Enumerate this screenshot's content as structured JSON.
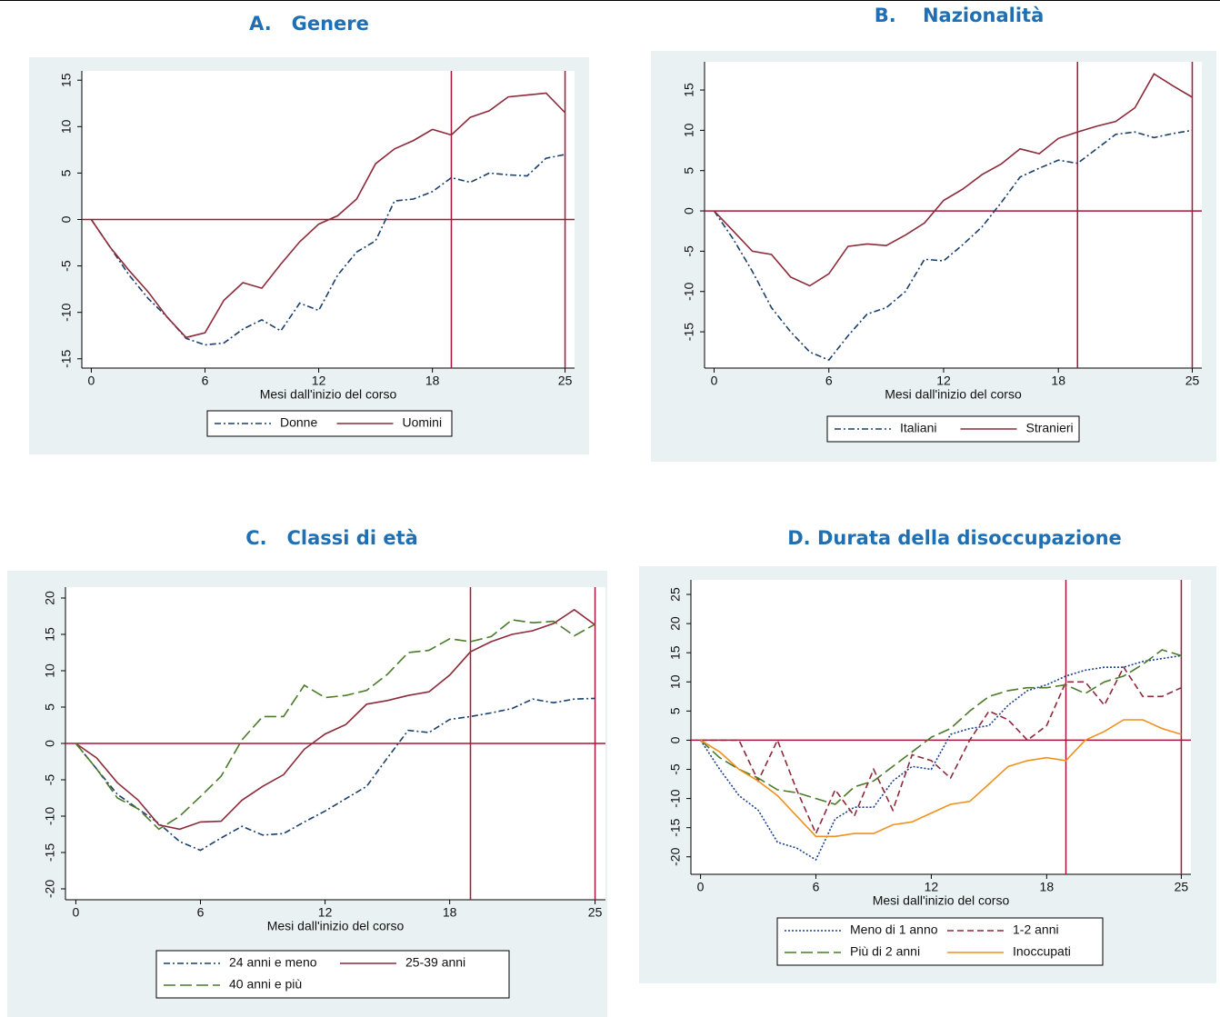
{
  "chart_data": [
    {
      "type": "line",
      "title": "A.   Genere",
      "xlabel": "Mesi dall'inizio del corso",
      "x": [
        0,
        1,
        2,
        3,
        4,
        5,
        6,
        7,
        8,
        9,
        10,
        11,
        12,
        13,
        14,
        15,
        16,
        17,
        18,
        19,
        20,
        21,
        22,
        23,
        24,
        25
      ],
      "xlim": [
        -0.5,
        25.5
      ],
      "xticks": [
        0,
        6,
        12,
        18,
        25
      ],
      "ylim": [
        -16,
        16
      ],
      "yticks": [
        -15,
        -10,
        -5,
        0,
        5,
        10,
        15
      ],
      "hline": 0,
      "vlines": [
        19,
        25
      ],
      "ref_color": "#a5173a",
      "series": [
        {
          "name": "Donne",
          "color": "#1b3f6b",
          "style": "dashdot",
          "values": [
            0,
            -3,
            -6,
            -8.5,
            -10.5,
            -12.8,
            -13.5,
            -13.3,
            -11.8,
            -10.8,
            -12,
            -9,
            -9.8,
            -6,
            -3.5,
            -2.3,
            2,
            2.2,
            3,
            4.5,
            4,
            5,
            4.8,
            4.7,
            6.6,
            7
          ]
        },
        {
          "name": "Uomini",
          "color": "#8c2a3a",
          "style": "solid",
          "values": [
            0,
            -3,
            -5.5,
            -7.8,
            -10.5,
            -12.7,
            -12.2,
            -8.7,
            -6.8,
            -7.4,
            -4.8,
            -2.4,
            -0.5,
            0.4,
            2.2,
            6,
            7.6,
            8.5,
            9.7,
            9.1,
            11,
            11.7,
            13.2,
            13.4,
            13.6,
            11.5
          ]
        }
      ]
    },
    {
      "type": "line",
      "title": "B.    Nazionalità",
      "xlabel": "Mesi dall'inizio del corso",
      "x": [
        0,
        1,
        2,
        3,
        4,
        5,
        6,
        7,
        8,
        9,
        10,
        11,
        12,
        13,
        14,
        15,
        16,
        17,
        18,
        19,
        20,
        21,
        22,
        23,
        24,
        25
      ],
      "xlim": [
        -0.5,
        25.5
      ],
      "xticks": [
        0,
        6,
        12,
        18,
        25
      ],
      "ylim": [
        -19.5,
        18.5
      ],
      "yticks": [
        -15,
        -10,
        -5,
        0,
        5,
        10,
        15
      ],
      "hline": 0,
      "vlines": [
        19,
        25
      ],
      "ref_color": "#a5173a",
      "series": [
        {
          "name": "Italiani",
          "color": "#1b3f6b",
          "style": "dashdot",
          "values": [
            0,
            -3.5,
            -7.5,
            -12,
            -15,
            -17.5,
            -18.5,
            -15.5,
            -12.8,
            -12,
            -10,
            -6,
            -6.2,
            -4.2,
            -2,
            1,
            4.2,
            5.3,
            6.3,
            5.9,
            7.7,
            9.5,
            9.8,
            9.1,
            9.6,
            10
          ]
        },
        {
          "name": "Stranieri",
          "color": "#8c2a3a",
          "style": "solid",
          "values": [
            0,
            -2.5,
            -5,
            -5.4,
            -8.2,
            -9.3,
            -7.8,
            -4.4,
            -4.1,
            -4.3,
            -3,
            -1.5,
            1.3,
            2.7,
            4.5,
            5.8,
            7.7,
            7.1,
            9,
            9.8,
            10.5,
            11.1,
            12.8,
            17,
            15.5,
            14.1
          ]
        }
      ]
    },
    {
      "type": "line",
      "title": "C.   Classi di età",
      "xlabel": "Mesi dall'inizio del corso",
      "x": [
        0,
        1,
        2,
        3,
        4,
        5,
        6,
        7,
        8,
        9,
        10,
        11,
        12,
        13,
        14,
        15,
        16,
        17,
        18,
        19,
        20,
        21,
        22,
        23,
        24,
        25
      ],
      "xlim": [
        -0.5,
        25.5
      ],
      "xticks": [
        0,
        6,
        12,
        18,
        25
      ],
      "ylim": [
        -21.5,
        21.5
      ],
      "yticks": [
        -20,
        -15,
        -10,
        -5,
        0,
        5,
        10,
        15,
        20
      ],
      "hline": 0,
      "vlines": [
        19,
        25
      ],
      "ref_color": "#a5173a",
      "series": [
        {
          "name": "24 anni e meno",
          "color": "#1b3f6b",
          "style": "dashdot",
          "values": [
            0,
            -3.5,
            -7,
            -9,
            -11,
            -13.5,
            -14.7,
            -13,
            -11.4,
            -12.6,
            -12.4,
            -10.8,
            -9.3,
            -7.6,
            -5.9,
            -2,
            1.8,
            1.5,
            3.3,
            3.7,
            4.2,
            4.8,
            6.1,
            5.6,
            6.1,
            6.2
          ]
        },
        {
          "name": "25-39 anni",
          "color": "#8c2a3a",
          "style": "solid",
          "values": [
            0,
            -2,
            -5.4,
            -7.8,
            -11.2,
            -11.8,
            -10.8,
            -10.7,
            -7.8,
            -5.9,
            -4.3,
            -0.8,
            1.3,
            2.6,
            5.4,
            5.9,
            6.6,
            7.1,
            9.4,
            12.6,
            14,
            15,
            15.5,
            16.5,
            18.4,
            16.3
          ]
        },
        {
          "name": "40 anni e più",
          "color": "#4a7a2a",
          "style": "longdash",
          "values": [
            0,
            -3.5,
            -7.5,
            -9,
            -11.8,
            -10,
            -7.3,
            -4.5,
            0.5,
            3.7,
            3.7,
            8,
            6.3,
            6.6,
            7.3,
            9.5,
            12.5,
            12.8,
            14.4,
            14,
            14.7,
            17,
            16.6,
            16.8,
            14.8,
            16.4
          ]
        }
      ]
    },
    {
      "type": "line",
      "title": "D. Durata della disoccupazione",
      "xlabel": "Mesi dall'inizio del corso",
      "x": [
        0,
        1,
        2,
        3,
        4,
        5,
        6,
        7,
        8,
        9,
        10,
        11,
        12,
        13,
        14,
        15,
        16,
        17,
        18,
        19,
        20,
        21,
        22,
        23,
        24,
        25
      ],
      "xlim": [
        -0.5,
        25.5
      ],
      "xticks": [
        0,
        6,
        12,
        18,
        25
      ],
      "ylim": [
        -23,
        27.5
      ],
      "yticks": [
        -20,
        -15,
        -10,
        -5,
        0,
        5,
        10,
        15,
        20,
        25
      ],
      "hline": 0,
      "vlines": [
        19,
        25
      ],
      "ref_color": "#a5173a",
      "series": [
        {
          "name": "Meno di 1 anno",
          "color": "#1b3f8b",
          "style": "dot",
          "values": [
            0,
            -5,
            -9.5,
            -12,
            -17.5,
            -18.5,
            -20.5,
            -13.5,
            -11.5,
            -11.5,
            -7,
            -4.5,
            -5,
            1,
            2,
            2.5,
            6,
            8.5,
            9.5,
            11,
            12,
            12.5,
            12.5,
            13.5,
            14,
            14.5
          ]
        },
        {
          "name": "1-2 anni",
          "color": "#8c2a3a",
          "style": "dash",
          "values": [
            0,
            0,
            0,
            -7,
            0,
            -8.5,
            -16,
            -8.5,
            -13,
            -5,
            -12,
            -2.5,
            -3.5,
            -6.5,
            0,
            5,
            3.5,
            0,
            2.5,
            10,
            10,
            6,
            12.5,
            7.5,
            7.5,
            9
          ]
        },
        {
          "name": "Più di 2 anni",
          "color": "#4a7a2a",
          "style": "longdash",
          "values": [
            0,
            -3,
            -5,
            -6.5,
            -8.5,
            -9,
            -10,
            -11,
            -8,
            -7,
            -4.5,
            -2,
            0.5,
            2,
            5,
            7.5,
            8.5,
            9,
            9,
            9.5,
            8,
            10,
            11,
            13,
            15.5,
            14.5
          ]
        },
        {
          "name": "Inoccupati",
          "color": "#f0901e",
          "style": "solid",
          "values": [
            0,
            -2,
            -5,
            -7,
            -9.5,
            -13,
            -16.5,
            -16.5,
            -16,
            -16,
            -14.5,
            -14,
            -12.5,
            -11,
            -10.5,
            -7.5,
            -4.5,
            -3.5,
            -3,
            -3.5,
            0,
            1.5,
            3.5,
            3.5,
            2,
            1
          ]
        }
      ]
    }
  ]
}
